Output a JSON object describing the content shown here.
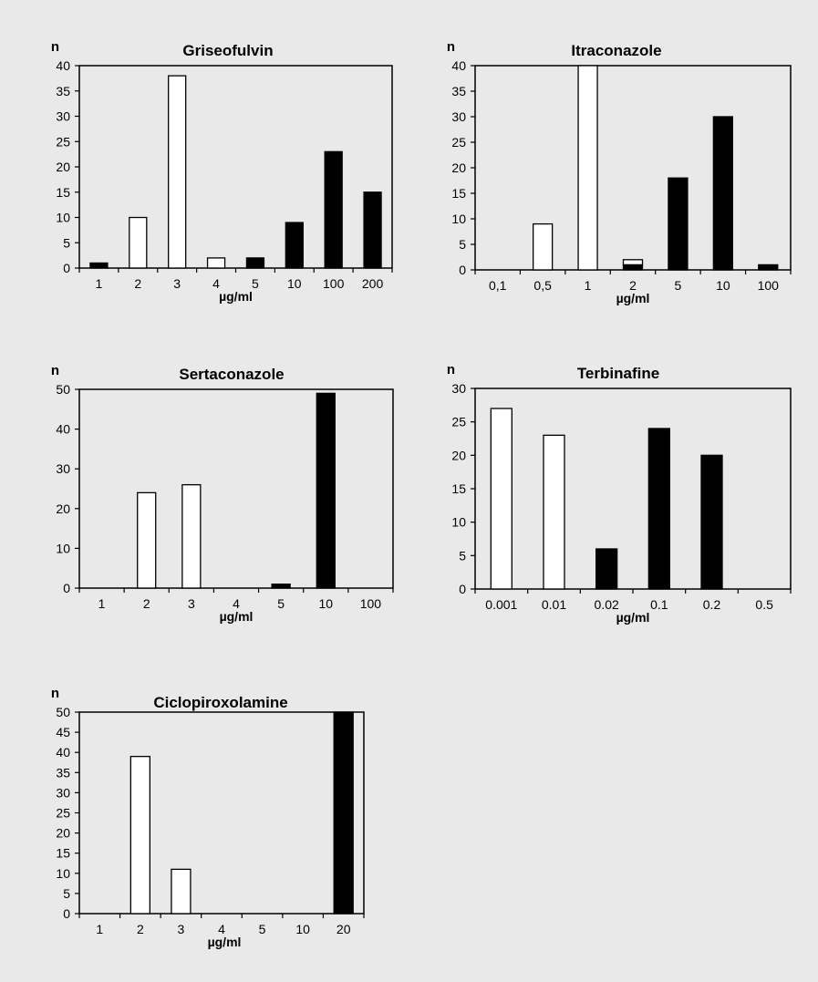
{
  "chart_data": [
    {
      "type": "bar",
      "title": "Griseofulvin",
      "ylabel": "n",
      "xlabel": "µg/ml",
      "ylim": [
        0,
        40
      ],
      "yticks": [
        0,
        5,
        10,
        15,
        20,
        25,
        30,
        35,
        40
      ],
      "categories": [
        "1",
        "2",
        "3",
        "4",
        "5",
        "10",
        "100",
        "200"
      ],
      "values": [
        1,
        10,
        38,
        2,
        2,
        9,
        23,
        15
      ],
      "fills": [
        "black",
        "white",
        "white",
        "white",
        "black",
        "black",
        "black",
        "black"
      ],
      "grid": false
    },
    {
      "type": "bar",
      "title": "Itraconazole",
      "ylabel": "n",
      "xlabel": "µg/ml",
      "ylim": [
        0,
        40
      ],
      "yticks": [
        0,
        5,
        10,
        15,
        20,
        25,
        30,
        35,
        40
      ],
      "categories": [
        "0,1",
        "0,5",
        "1",
        "2",
        "5",
        "10",
        "100"
      ],
      "values": [
        0,
        9,
        40,
        2,
        18,
        30,
        1
      ],
      "fills": [
        "white",
        "white",
        "white",
        "white",
        "black",
        "black",
        "black"
      ],
      "stacked_note": "at 2 µg/ml: 1 black + 1 white",
      "stack": [
        [],
        [],
        [],
        [
          {
            "v": 1,
            "fill": "black"
          },
          {
            "v": 1,
            "fill": "white"
          }
        ],
        [],
        [],
        []
      ],
      "grid": false
    },
    {
      "type": "bar",
      "title": "Sertaconazole",
      "ylabel": "n",
      "xlabel": "µg/ml",
      "ylim": [
        0,
        50
      ],
      "yticks": [
        0,
        10,
        20,
        30,
        40,
        50
      ],
      "categories": [
        "1",
        "2",
        "3",
        "4",
        "5",
        "10",
        "100"
      ],
      "values": [
        0,
        24,
        26,
        0,
        1,
        49,
        0
      ],
      "fills": [
        "white",
        "white",
        "white",
        "white",
        "black",
        "black",
        "black"
      ],
      "grid": false
    },
    {
      "type": "bar",
      "title": "Terbinafine",
      "ylabel": "n",
      "xlabel": "µg/ml",
      "ylim": [
        0,
        30
      ],
      "yticks": [
        0,
        5,
        10,
        15,
        20,
        25,
        30
      ],
      "categories": [
        "0.001",
        "0.01",
        "0.02",
        "0.1",
        "0.2",
        "0.5"
      ],
      "values": [
        27,
        23,
        6,
        24,
        20,
        0
      ],
      "fills": [
        "white",
        "white",
        "black",
        "black",
        "black",
        "black"
      ],
      "grid": false
    },
    {
      "type": "bar",
      "title": "Ciclopiroxolamine",
      "ylabel": "n",
      "xlabel": "µg/ml",
      "ylim": [
        0,
        50
      ],
      "yticks": [
        0,
        5,
        10,
        15,
        20,
        25,
        30,
        35,
        40,
        45,
        50
      ],
      "categories": [
        "1",
        "2",
        "3",
        "4",
        "5",
        "10",
        "20"
      ],
      "values": [
        0,
        39,
        11,
        0,
        0,
        0,
        50
      ],
      "fills": [
        "white",
        "white",
        "white",
        "white",
        "white",
        "white",
        "black"
      ],
      "grid": false
    }
  ]
}
